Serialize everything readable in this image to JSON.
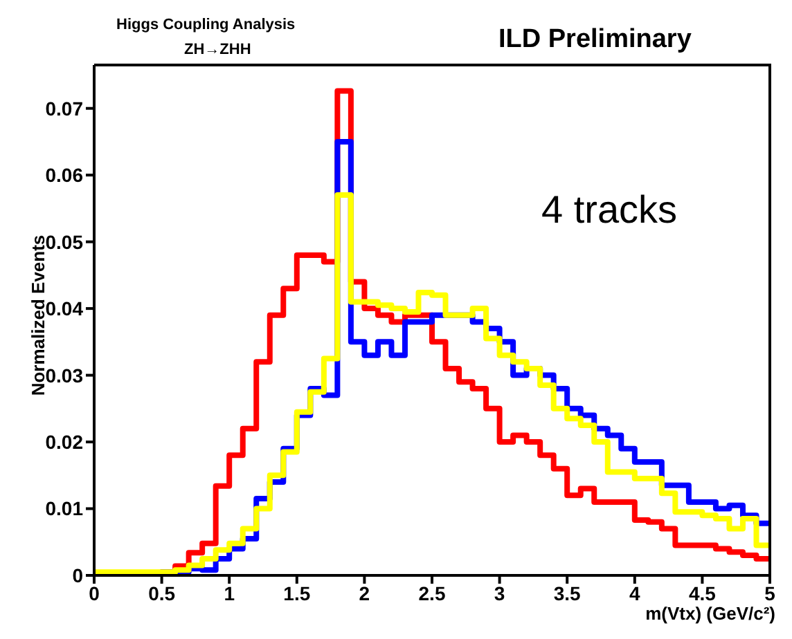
{
  "chart_data": {
    "type": "histogram",
    "title": "Higgs Coupling Analysis",
    "subtitle": "ZH→ZHH",
    "annotations": [
      "ILD Preliminary",
      "4 tracks"
    ],
    "xlabel": "m(Vtx) (GeV/c²)",
    "ylabel": "Normalized Events",
    "bins": [
      0,
      0.1,
      0.2,
      0.3,
      0.4,
      0.5,
      0.6,
      0.7,
      0.8,
      0.9,
      1,
      1.1,
      1.2,
      1.3,
      1.4,
      1.5,
      1.6,
      1.7,
      1.8,
      1.9,
      2,
      2.1,
      2.2,
      2.3,
      2.4,
      2.5,
      2.6,
      2.7,
      2.8,
      2.9,
      3,
      3.1,
      3.2,
      3.3,
      3.4,
      3.5,
      3.6,
      3.7,
      3.8,
      3.9,
      4,
      4.1,
      4.2,
      4.3,
      4.4,
      4.5,
      4.6,
      4.7,
      4.8,
      4.9,
      5
    ],
    "series": [
      {
        "color": "#ff0000",
        "values": [
          0,
          0,
          0,
          0,
          0,
          0.0005,
          0.0014,
          0.0034,
          0.0048,
          0.0134,
          0.018,
          0.022,
          0.032,
          0.039,
          0.043,
          0.048,
          0.048,
          0.047,
          0.0726,
          0.044,
          0.04,
          0.039,
          0.038,
          0.039,
          0.039,
          0.035,
          0.031,
          0.029,
          0.028,
          0.025,
          0.02,
          0.021,
          0.02,
          0.018,
          0.016,
          0.012,
          0.013,
          0.011,
          0.011,
          0.011,
          0.0083,
          0.008,
          0.007,
          0.0045,
          0.0045,
          0.0045,
          0.004,
          0.0035,
          0.003,
          0.0025
        ]
      },
      {
        "color": "#0000ff",
        "values": [
          0,
          0,
          0,
          0,
          0,
          0.0005,
          0.0005,
          0.001,
          0.0008,
          0.0025,
          0.004,
          0.0055,
          0.0115,
          0.014,
          0.019,
          0.024,
          0.028,
          0.027,
          0.065,
          0.035,
          0.033,
          0.035,
          0.033,
          0.038,
          0.038,
          0.039,
          0.039,
          0.039,
          0.038,
          0.037,
          0.035,
          0.03,
          0.031,
          0.03,
          0.028,
          0.025,
          0.024,
          0.022,
          0.021,
          0.019,
          0.017,
          0.017,
          0.0135,
          0.0135,
          0.011,
          0.011,
          0.01,
          0.0105,
          0.009,
          0.0078
        ]
      },
      {
        "color": "#ffff00",
        "values": [
          0.0005,
          0.0005,
          0.0005,
          0.0005,
          0.0005,
          0.0005,
          0.0008,
          0.0015,
          0.0025,
          0.0038,
          0.0048,
          0.007,
          0.01,
          0.015,
          0.0185,
          0.0245,
          0.0275,
          0.0325,
          0.057,
          0.041,
          0.041,
          0.0405,
          0.04,
          0.0395,
          0.0424,
          0.042,
          0.039,
          0.039,
          0.04,
          0.0355,
          0.033,
          0.032,
          0.031,
          0.0285,
          0.025,
          0.0235,
          0.0225,
          0.02,
          0.0155,
          0.0155,
          0.0145,
          0.0145,
          0.0123,
          0.0095,
          0.0095,
          0.009,
          0.0085,
          0.007,
          0.0085,
          0.0045
        ]
      }
    ],
    "xlim": [
      0,
      5
    ],
    "xticks": [
      0,
      0.5,
      1,
      1.5,
      2,
      2.5,
      3,
      3.5,
      4,
      4.5,
      5
    ],
    "ylim": [
      0,
      0.0765
    ],
    "yticks": [
      0,
      0.01,
      0.02,
      0.03,
      0.04,
      0.05,
      0.06,
      0.07
    ],
    "grid": false,
    "legend": false
  }
}
